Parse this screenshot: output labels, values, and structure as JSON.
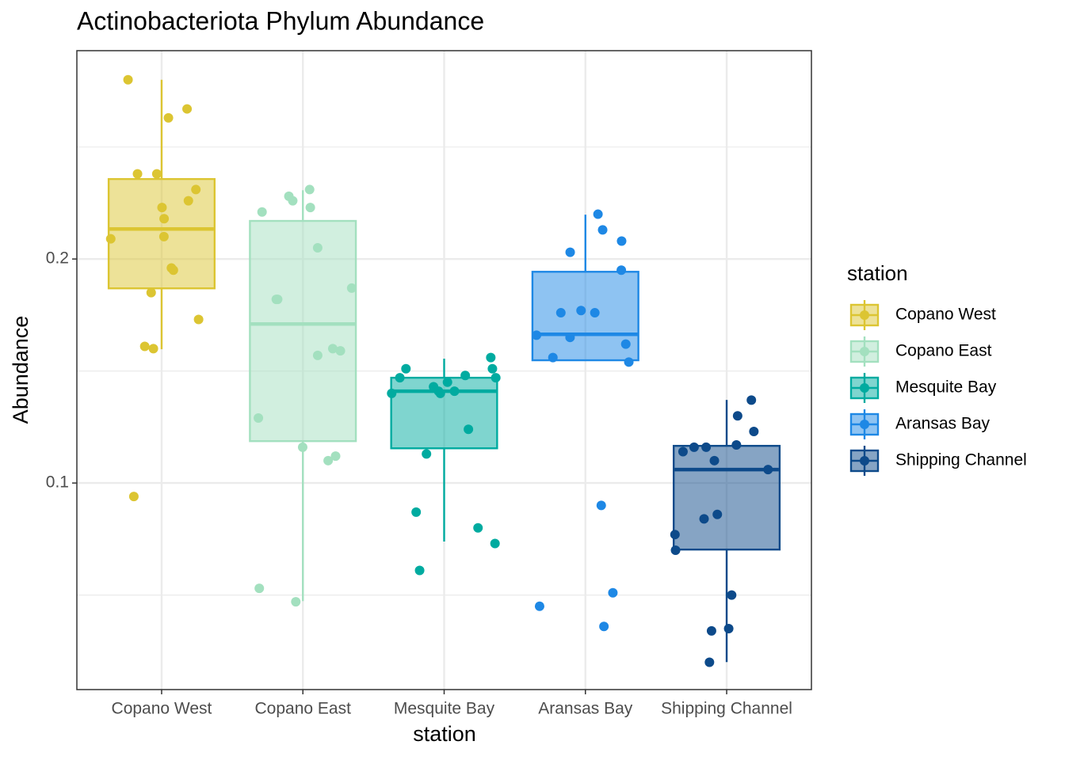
{
  "chart_data": {
    "type": "boxplot",
    "title": "Actinobacteriota Phylum Abundance",
    "x_label": "station",
    "y_label": "Abundance",
    "legend_title": "station",
    "categories": [
      "Copano West",
      "Copano East",
      "Mesquite Bay",
      "Aransas Bay",
      "Shipping Channel"
    ],
    "ylim": [
      0.0078,
      0.293
    ],
    "yticks": [
      0.1,
      0.2
    ],
    "minor_yticks": [
      0.05,
      0.15,
      0.25
    ],
    "grid": true,
    "legend": "right",
    "series": [
      {
        "name": "Copano West",
        "color": "#dcc532",
        "box": {
          "min": 0.1597,
          "q1": 0.1869,
          "median": 0.2134,
          "q3": 0.2357,
          "max": 0.28
        },
        "points": [
          0.28,
          0.267,
          0.263,
          0.238,
          0.238,
          0.231,
          0.226,
          0.223,
          0.218,
          0.21,
          0.209,
          0.196,
          0.195,
          0.185,
          0.173,
          0.161,
          0.16,
          0.094
        ]
      },
      {
        "name": "Copano East",
        "color": "#a3e0bf",
        "box": {
          "min": 0.0473,
          "q1": 0.1187,
          "median": 0.171,
          "q3": 0.217,
          "max": 0.2307
        },
        "points": [
          0.231,
          0.228,
          0.226,
          0.223,
          0.221,
          0.205,
          0.187,
          0.182,
          0.182,
          0.16,
          0.159,
          0.157,
          0.129,
          0.116,
          0.112,
          0.11,
          0.053,
          0.047
        ]
      },
      {
        "name": "Mesquite Bay",
        "color": "#00aba0",
        "box": {
          "min": 0.0739,
          "q1": 0.1155,
          "median": 0.141,
          "q3": 0.147,
          "max": 0.1555
        },
        "points": [
          0.156,
          0.151,
          0.151,
          0.148,
          0.147,
          0.147,
          0.145,
          0.143,
          0.141,
          0.141,
          0.14,
          0.14,
          0.124,
          0.113,
          0.087,
          0.08,
          0.073,
          0.061
        ]
      },
      {
        "name": "Aransas Bay",
        "color": "#1e88e5",
        "box": {
          "min": 0.1548,
          "q1": 0.1548,
          "median": 0.1664,
          "q3": 0.1943,
          "max": 0.2198
        },
        "points": [
          0.22,
          0.213,
          0.208,
          0.203,
          0.195,
          0.177,
          0.176,
          0.176,
          0.166,
          0.165,
          0.162,
          0.156,
          0.154,
          0.09,
          0.051,
          0.045,
          0.036
        ]
      },
      {
        "name": "Shipping Channel",
        "color": "#0d4a8a",
        "box": {
          "min": 0.0201,
          "q1": 0.0703,
          "median": 0.106,
          "q3": 0.1166,
          "max": 0.1371
        },
        "points": [
          0.137,
          0.13,
          0.123,
          0.117,
          0.116,
          0.116,
          0.114,
          0.11,
          0.106,
          0.086,
          0.084,
          0.077,
          0.07,
          0.05,
          0.035,
          0.034,
          0.02
        ]
      }
    ]
  }
}
